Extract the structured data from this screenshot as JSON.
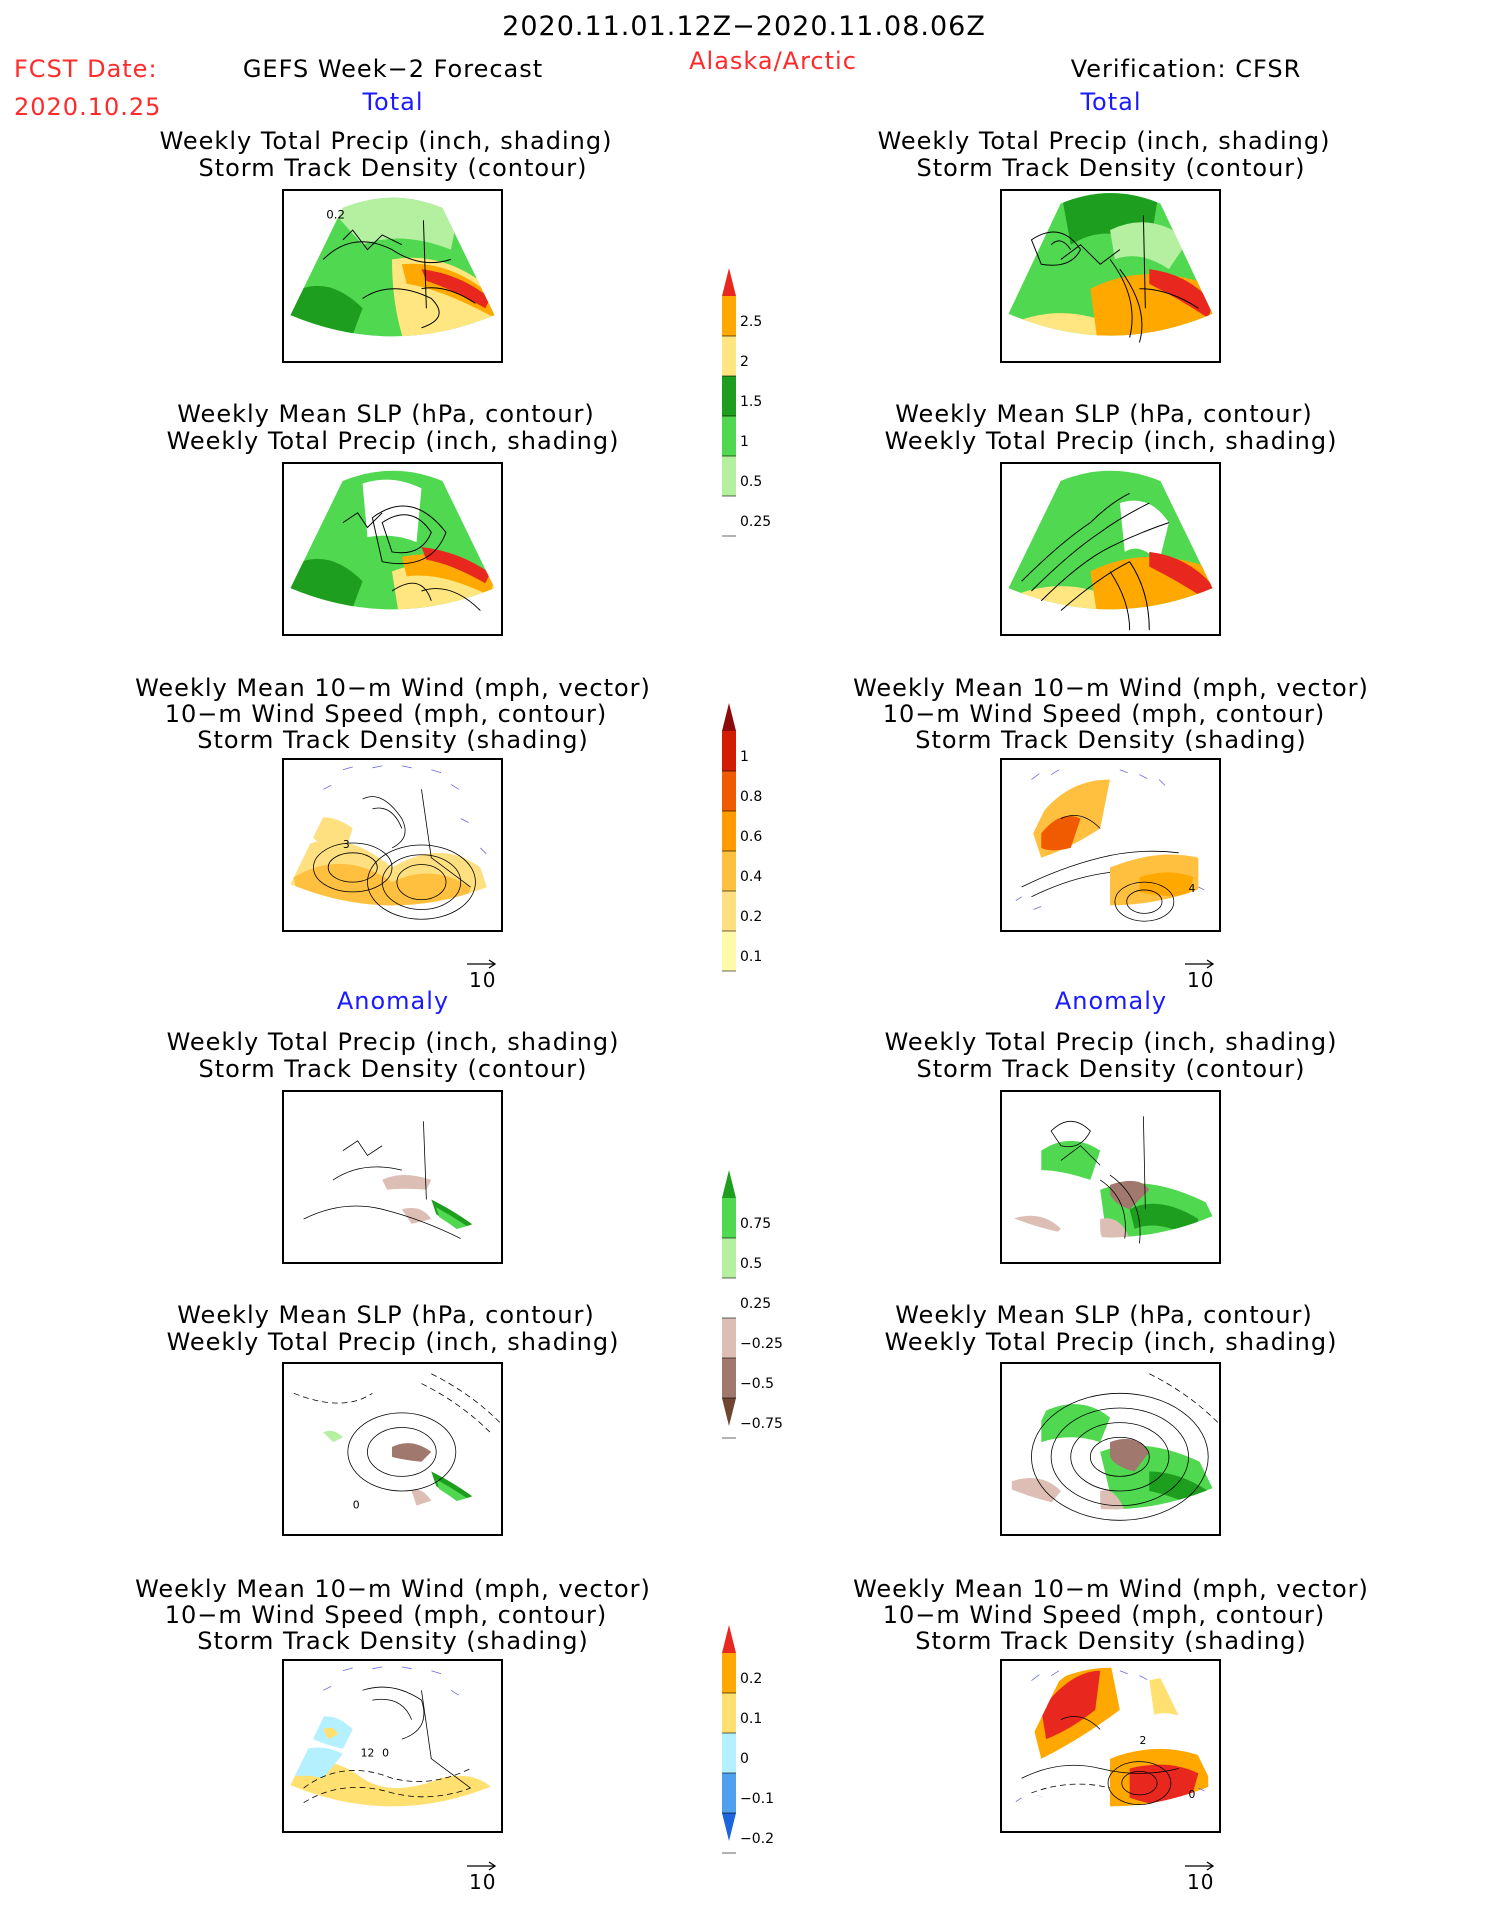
{
  "header": {
    "period": "2020.11.01.12Z−2020.11.08.06Z",
    "fcst_label": "FCST Date:",
    "fcst_date": "2020.10.25",
    "forecast_title": "GEFS Week−2 Forecast",
    "region": "Alaska/Arctic",
    "verification": "Verification: CFSR"
  },
  "sections": {
    "total": "Total",
    "anomaly": "Anomaly"
  },
  "titles": {
    "precip_track": [
      "Weekly Total Precip (inch, shading)",
      "Storm Track Density (contour)"
    ],
    "slp_precip": [
      "Weekly Mean SLP (hPa, contour)",
      "Weekly Total Precip (inch, shading)"
    ],
    "wind_track": [
      "Weekly Mean 10−m Wind (mph, vector)",
      "10−m Wind Speed (mph, contour)",
      "Storm Track Density (shading)"
    ]
  },
  "vector_ref": "10",
  "contour_labels": {
    "total_precip_left": "0.2",
    "anom_slp_left": "0",
    "anom_wind_left_a": "12",
    "anom_wind_left_b": "0",
    "anom_wind_right_a": "2",
    "anom_wind_right_b": "0",
    "total_wind_right": "4",
    "total_wind_left": "3"
  },
  "colorbars": {
    "total_precip": {
      "colors": [
        "#ffffff",
        "#b4f0a0",
        "#50d850",
        "#1e9e1e",
        "#ffe680",
        "#ffa800",
        "#e8281e"
      ],
      "labels": [
        "0.25",
        "0.5",
        "1",
        "1.5",
        "2",
        "2.5"
      ]
    },
    "total_track": {
      "colors": [
        "#ffffff",
        "#fffaaa",
        "#ffe080",
        "#ffc040",
        "#ff9a00",
        "#f05a00",
        "#d21e00",
        "#8c0a0a"
      ],
      "labels": [
        "0.1",
        "0.2",
        "0.4",
        "0.6",
        "0.8",
        "1"
      ]
    },
    "anom_precip": {
      "colors": [
        "#6e4632",
        "#a0786e",
        "#dcbeb4",
        "#ffffff",
        "#b4f0a0",
        "#50d850",
        "#1e9e1e"
      ],
      "labels": [
        "−0.75",
        "−0.5",
        "−0.25",
        "0.25",
        "0.5",
        "0.75"
      ]
    },
    "anom_track": {
      "colors": [
        "#1e64dc",
        "#50a0f0",
        "#b4f0ff",
        "#ffe070",
        "#ffa800",
        "#e8281e"
      ],
      "labels": [
        "−0.2",
        "−0.1",
        "0",
        "0.1",
        "0.2"
      ]
    }
  }
}
